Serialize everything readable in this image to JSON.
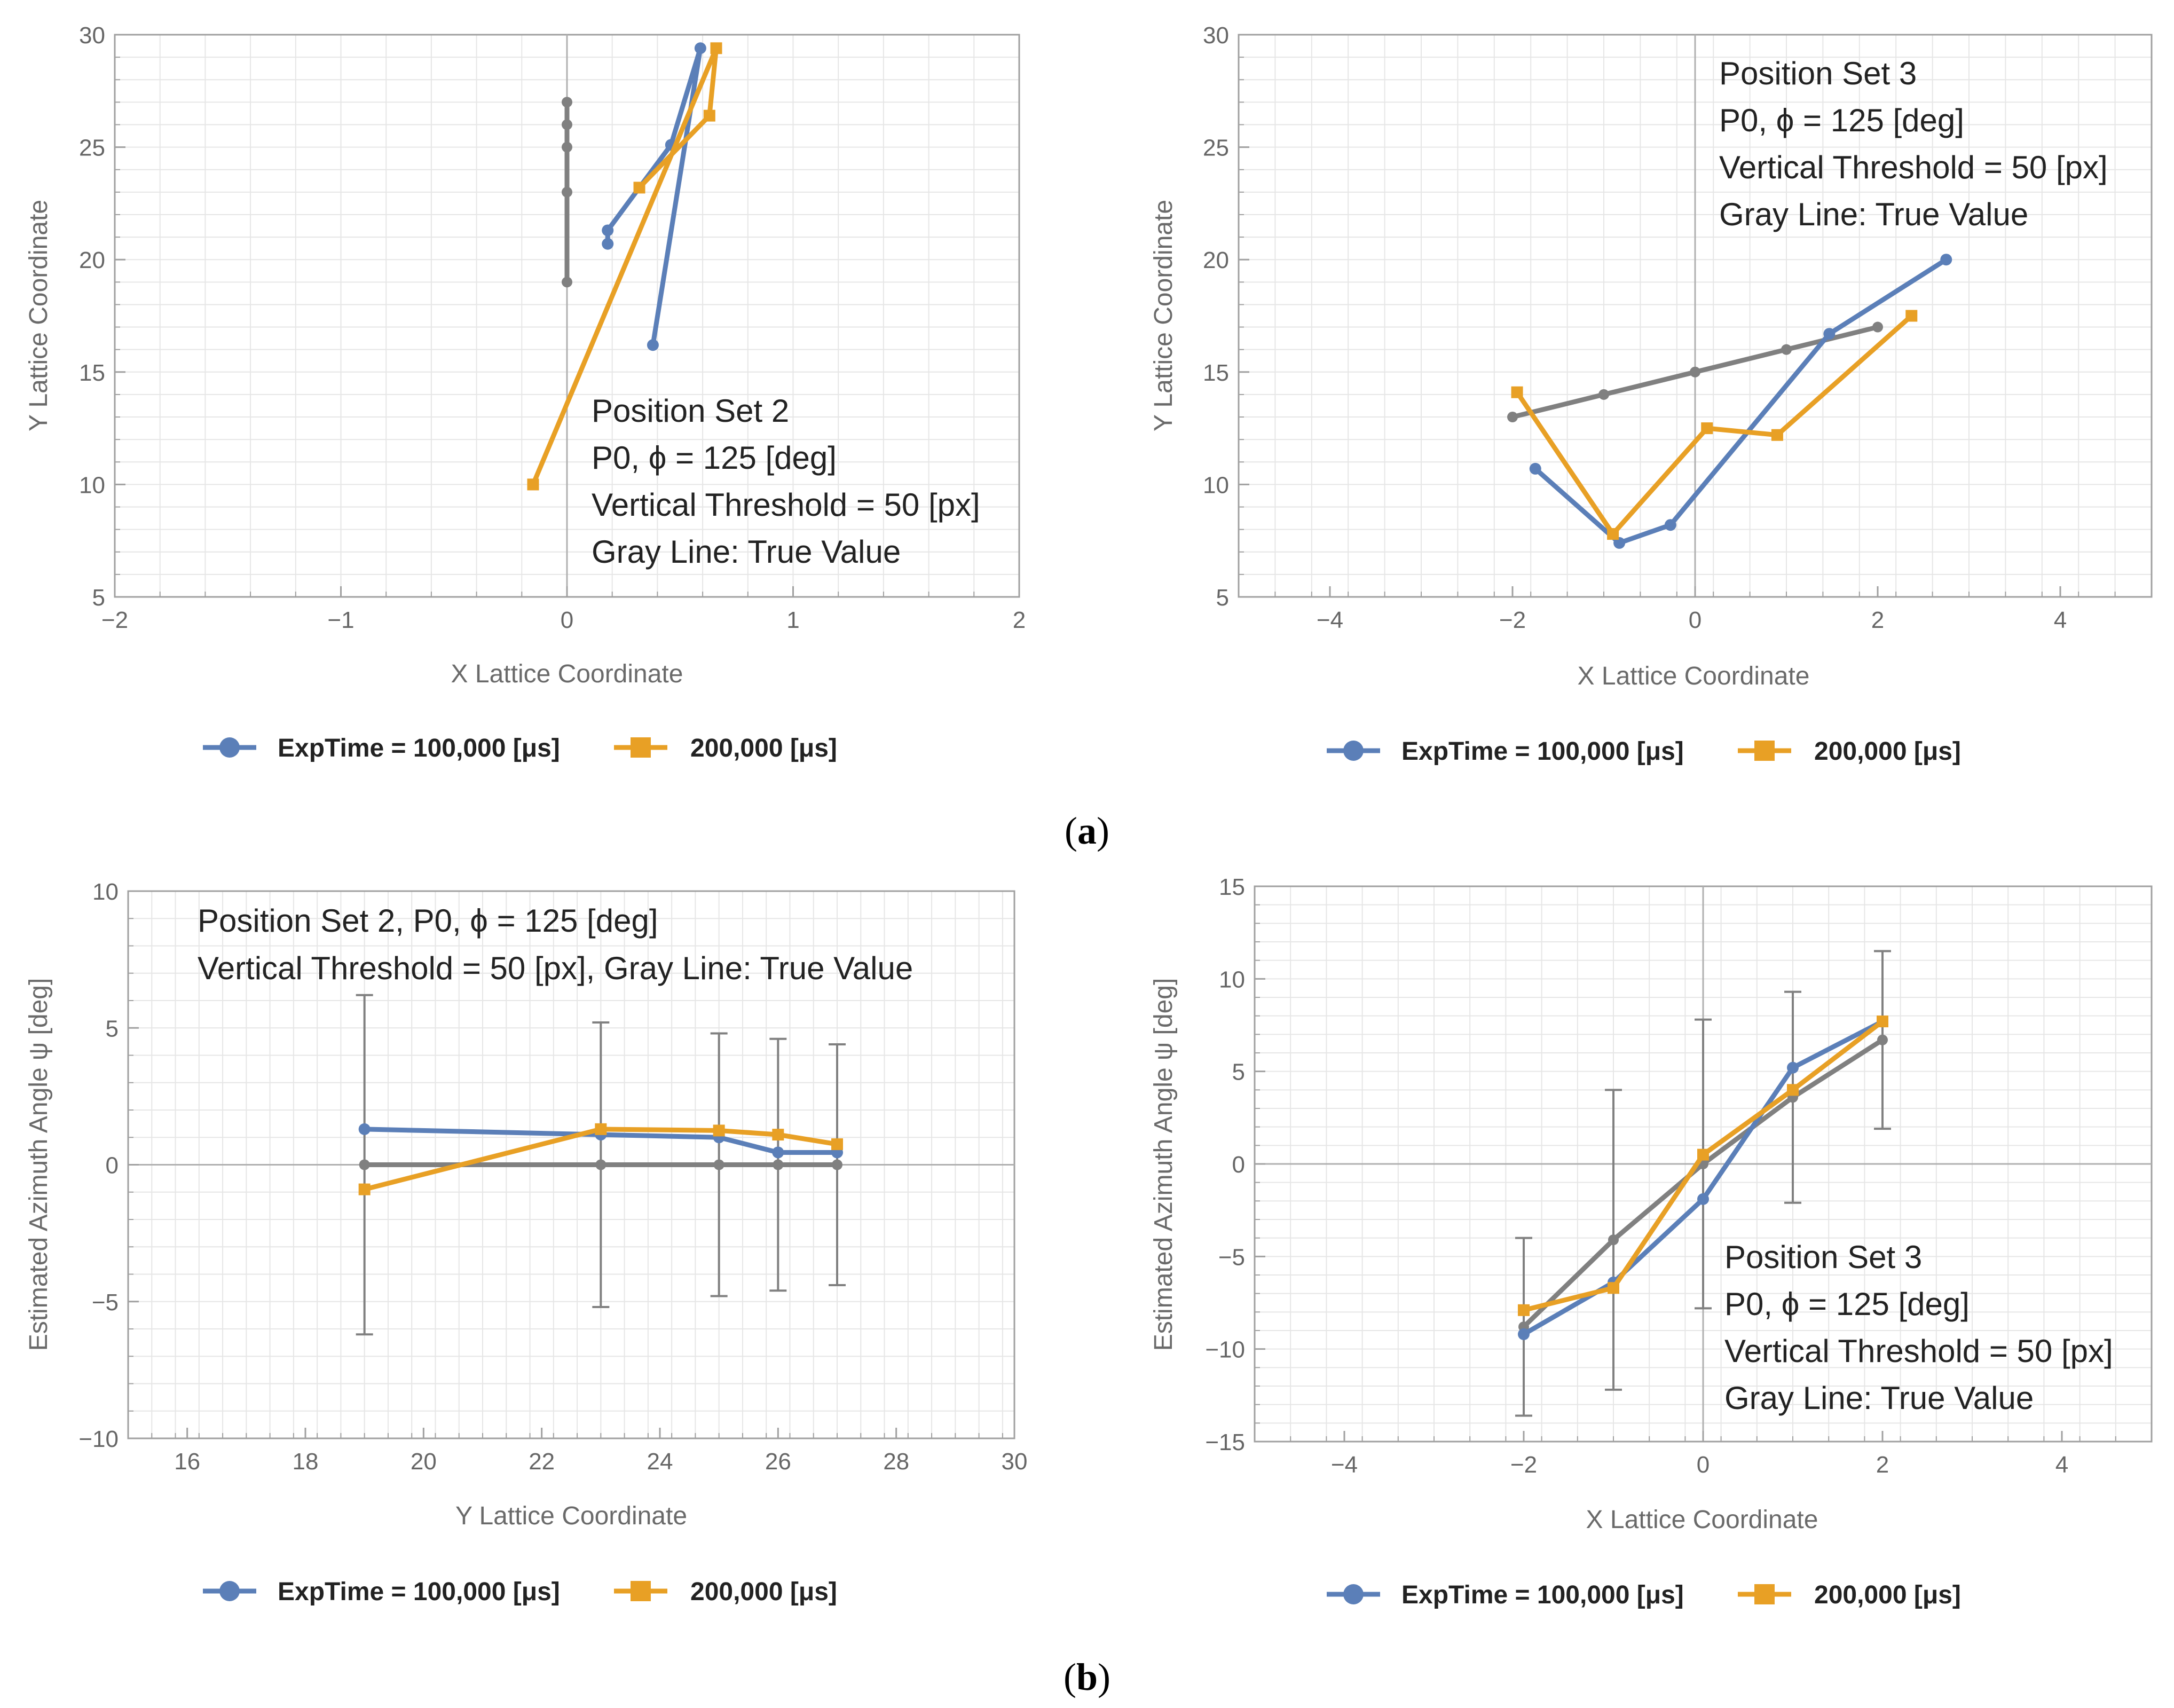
{
  "captions": {
    "a": "a",
    "b": "b"
  },
  "legend": {
    "blue_label": "ExpTime = 100,000 [μs]",
    "orange_label": "200,000 [μs]"
  },
  "colors": {
    "blue": "#5b7fb8",
    "orange": "#e8a025",
    "gray": "#808080",
    "grid": "#e6e6e6",
    "axis": "#a0a0a0"
  },
  "chart_data": [
    {
      "id": "a-left",
      "type": "line",
      "xlabel": "X Lattice Coordinate",
      "ylabel": "Y Lattice Coordinate",
      "xlim": [
        -2,
        2
      ],
      "ylim": [
        5,
        30
      ],
      "xticks": [
        -2,
        -1,
        0,
        1,
        2
      ],
      "yticks": [
        5,
        10,
        15,
        20,
        25,
        30
      ],
      "xtick_labels": [
        "−2",
        "−1",
        "0",
        "1",
        "2"
      ],
      "ytick_labels": [
        "5",
        "10",
        "15",
        "20",
        "25",
        "30"
      ],
      "grid": true,
      "annotation": [
        "Position Set 2",
        "P0, ϕ = 125 [deg]",
        "Vertical Threshold = 50 [px]",
        "Gray Line: True Value"
      ],
      "series": [
        {
          "name": "True Value",
          "color": "gray",
          "marker": "circle",
          "points": [
            [
              0,
              19
            ],
            [
              0,
              23
            ],
            [
              0,
              25
            ],
            [
              0,
              26
            ],
            [
              0,
              27
            ]
          ]
        },
        {
          "name": "ExpTime = 100,000 [μs]",
          "color": "blue",
          "marker": "circle",
          "points": [
            [
              0.38,
              16.2
            ],
            [
              0.59,
              29.4
            ],
            [
              0.46,
              25.1
            ],
            [
              0.18,
              21.3
            ],
            [
              0.18,
              20.7
            ]
          ]
        },
        {
          "name": "200,000 [μs]",
          "color": "orange",
          "marker": "square",
          "points": [
            [
              -0.15,
              10
            ],
            [
              0.66,
              29.4
            ],
            [
              0.63,
              26.4
            ],
            [
              0.32,
              23.2
            ]
          ]
        }
      ]
    },
    {
      "id": "a-right",
      "type": "line",
      "xlabel": "X Lattice Coordinate",
      "ylabel": "Y Lattice Coordinate",
      "xlim": [
        -5,
        5
      ],
      "ylim": [
        5,
        30
      ],
      "xticks": [
        -4,
        -2,
        0,
        2,
        4
      ],
      "yticks": [
        5,
        10,
        15,
        20,
        25,
        30
      ],
      "xtick_labels": [
        "−4",
        "−2",
        "0",
        "2",
        "4"
      ],
      "ytick_labels": [
        "5",
        "10",
        "15",
        "20",
        "25",
        "30"
      ],
      "grid": true,
      "annotation": [
        "Position Set 3",
        "P0, ϕ = 125 [deg]",
        "Vertical Threshold = 50 [px]",
        "Gray Line: True Value"
      ],
      "series": [
        {
          "name": "True Value",
          "color": "gray",
          "marker": "circle",
          "points": [
            [
              -2,
              13
            ],
            [
              -1,
              14
            ],
            [
              0,
              15
            ],
            [
              1,
              16
            ],
            [
              2,
              17
            ]
          ]
        },
        {
          "name": "ExpTime = 100,000 [μs]",
          "color": "blue",
          "marker": "circle",
          "points": [
            [
              -1.75,
              10.7
            ],
            [
              -0.83,
              7.4
            ],
            [
              -0.27,
              8.2
            ],
            [
              1.47,
              16.7
            ],
            [
              2.75,
              20
            ]
          ]
        },
        {
          "name": "200,000 [μs]",
          "color": "orange",
          "marker": "square",
          "points": [
            [
              -1.95,
              14.1
            ],
            [
              -0.9,
              7.8
            ],
            [
              0.13,
              12.5
            ],
            [
              0.9,
              12.2
            ],
            [
              2.37,
              17.5
            ]
          ]
        }
      ]
    },
    {
      "id": "b-left",
      "type": "line",
      "xlabel": "Y Lattice Coordinate",
      "ylabel": "Estimated Azimuth Angle ψ [deg]",
      "xlim": [
        15,
        30
      ],
      "ylim": [
        -10,
        10
      ],
      "xticks": [
        16,
        18,
        20,
        22,
        24,
        26,
        28,
        30
      ],
      "yticks": [
        -10,
        -5,
        0,
        5,
        10
      ],
      "xtick_labels": [
        "16",
        "18",
        "20",
        "22",
        "24",
        "26",
        "28",
        "30"
      ],
      "ytick_labels": [
        "−10",
        "−5",
        "0",
        "5",
        "10"
      ],
      "grid": true,
      "annotation": [
        "Position Set 2, P0, ϕ = 125 [deg]",
        "Vertical Threshold = 50 [px], Gray Line: True Value"
      ],
      "series": [
        {
          "name": "True Value",
          "color": "gray",
          "marker": "circle",
          "points": [
            [
              19,
              0
            ],
            [
              23,
              0
            ],
            [
              25,
              0
            ],
            [
              26,
              0
            ],
            [
              27,
              0
            ]
          ],
          "errors": [
            6.2,
            5.2,
            4.8,
            4.6,
            4.4
          ]
        },
        {
          "name": "ExpTime = 100,000 [μs]",
          "color": "blue",
          "marker": "circle",
          "points": [
            [
              19,
              1.3
            ],
            [
              23,
              1.1
            ],
            [
              25,
              1.0
            ],
            [
              26,
              0.45
            ],
            [
              27,
              0.45
            ]
          ]
        },
        {
          "name": "200,000 [μs]",
          "color": "orange",
          "marker": "square",
          "points": [
            [
              19,
              -0.9
            ],
            [
              23,
              1.3
            ],
            [
              25,
              1.25
            ],
            [
              26,
              1.1
            ],
            [
              27,
              0.75
            ]
          ]
        }
      ]
    },
    {
      "id": "b-right",
      "type": "line",
      "xlabel": "X Lattice Coordinate",
      "ylabel": "Estimated Azimuth Angle ψ [deg]",
      "xlim": [
        -5,
        5
      ],
      "ylim": [
        -15,
        15
      ],
      "xticks": [
        -4,
        -2,
        0,
        2,
        4
      ],
      "yticks": [
        -15,
        -10,
        -5,
        0,
        5,
        10,
        15
      ],
      "xtick_labels": [
        "−4",
        "−2",
        "0",
        "2",
        "4"
      ],
      "ytick_labels": [
        "−15",
        "−10",
        "−5",
        "0",
        "5",
        "10",
        "15"
      ],
      "grid": true,
      "annotation": [
        "Position Set 3",
        "P0, ϕ = 125 [deg]",
        "Vertical Threshold = 50 [px]",
        "Gray Line: True Value"
      ],
      "series": [
        {
          "name": "True Value",
          "color": "gray",
          "marker": "circle",
          "points": [
            [
              -2,
              -8.8
            ],
            [
              -1,
              -4.1
            ],
            [
              0,
              0
            ],
            [
              1,
              3.6
            ],
            [
              2,
              6.7
            ]
          ],
          "errors": [
            4.8,
            8.1,
            7.8,
            5.7,
            4.8
          ]
        },
        {
          "name": "ExpTime = 100,000 [μs]",
          "color": "blue",
          "marker": "circle",
          "points": [
            [
              -2,
              -9.2
            ],
            [
              -1,
              -6.4
            ],
            [
              0,
              -1.9
            ],
            [
              1,
              5.2
            ],
            [
              2,
              7.7
            ]
          ]
        },
        {
          "name": "200,000 [μs]",
          "color": "orange",
          "marker": "square",
          "points": [
            [
              -2,
              -7.9
            ],
            [
              -1,
              -6.7
            ],
            [
              0,
              0.5
            ],
            [
              1,
              4.0
            ],
            [
              2,
              7.7
            ]
          ]
        }
      ]
    }
  ]
}
